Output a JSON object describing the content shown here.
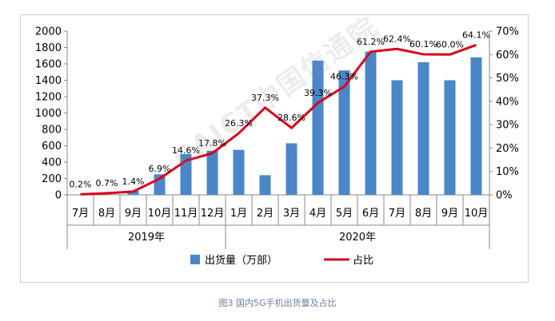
{
  "colors": {
    "bar": "#4a86c8",
    "line": "#d9001b",
    "axis": "#888888",
    "grid": "#d4d4d4",
    "text": "#000000",
    "caption": "#6b7fa0"
  },
  "caption": "图3 国内5G手机出货量及占比",
  "watermark": "CAICT中国信通院",
  "chart_data": {
    "type": "bar",
    "title": "",
    "categories": [
      "7月",
      "8月",
      "9月",
      "10月",
      "11月",
      "12月",
      "1月",
      "2月",
      "3月",
      "4月",
      "5月",
      "6月",
      "7月",
      "8月",
      "9月",
      "10月"
    ],
    "year_groups": [
      {
        "label": "2019年",
        "start": 0,
        "end": 5
      },
      {
        "label": "2020年",
        "start": 6,
        "end": 15
      }
    ],
    "series": [
      {
        "name": "出货量（万部）",
        "type": "bar",
        "axis": "left",
        "values": [
          0,
          0,
          50,
          250,
          500,
          540,
          550,
          240,
          630,
          1640,
          1520,
          1750,
          1400,
          1620,
          1400,
          1680
        ]
      },
      {
        "name": "占比",
        "type": "line",
        "axis": "right",
        "values": [
          0.2,
          0.7,
          1.4,
          6.9,
          14.6,
          17.8,
          26.3,
          37.3,
          28.6,
          39.3,
          46.3,
          61.2,
          62.4,
          60.1,
          60.0,
          64.1
        ],
        "labels": [
          "0.2%",
          "0.7%",
          "1.4%",
          "6.9%",
          "14.6%",
          "17.8%",
          "26.3%",
          "37.3%",
          "28.6%",
          "39.3%",
          "46.3%",
          "61.2%",
          "62.4%",
          "60.1%",
          "60.0%",
          "64.1%"
        ]
      }
    ],
    "yaxis_left": {
      "min": 0,
      "max": 2000,
      "step": 200
    },
    "yaxis_right": {
      "min": 0,
      "max": 70,
      "step": 10,
      "suffix": "%"
    },
    "grid": false,
    "legend": "bottom"
  }
}
